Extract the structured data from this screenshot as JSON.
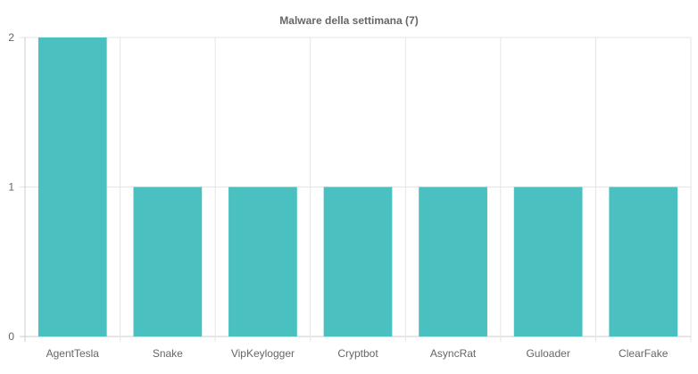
{
  "chart_data": {
    "type": "bar",
    "title": "Malware della settimana (7)",
    "categories": [
      "AgentTesla",
      "Snake",
      "VipKeylogger",
      "Cryptbot",
      "AsyncRat",
      "Guloader",
      "ClearFake"
    ],
    "values": [
      2,
      1,
      1,
      1,
      1,
      1,
      1
    ],
    "ylim": [
      0,
      2
    ],
    "yticks": [
      0,
      1,
      2
    ],
    "grid": true,
    "bar_color": "#4bc0c0",
    "grid_color": "#e5e5e5",
    "text_color": "#666666"
  }
}
